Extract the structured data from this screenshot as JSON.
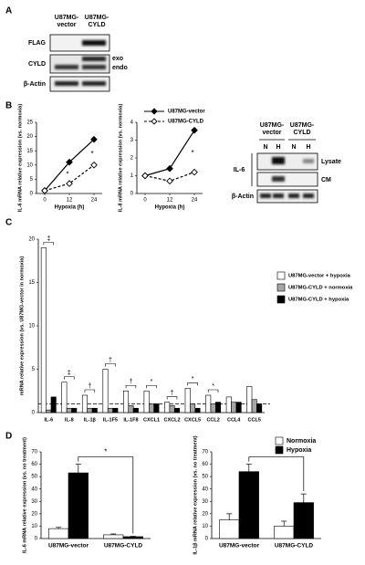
{
  "panels": {
    "a": "A",
    "b": "B",
    "c": "C",
    "d": "D"
  },
  "blot_a": {
    "columns": [
      "U87MG-vector",
      "U87MG-CYLD"
    ],
    "rows": [
      "FLAG",
      "CYLD",
      "β-Actin"
    ],
    "side_labels": [
      "exo",
      "endo"
    ]
  },
  "blot_b": {
    "groups": [
      "U87MG-vector",
      "U87MG-CYLD"
    ],
    "lanes": [
      "N",
      "H",
      "N",
      "H"
    ],
    "target": "IL-6",
    "fractions": [
      "Lysate",
      "CM"
    ],
    "loading": "β-Actin"
  },
  "chart_data": [
    {
      "type": "line",
      "ylabel": "IL-6 mRNA relative expression (vs. normoxia)",
      "xlabel": "Hypoxia (h)",
      "x": [
        0,
        12,
        24
      ],
      "xlim": [
        -4,
        28
      ],
      "xticks": [
        0,
        12,
        24
      ],
      "ylim": [
        0,
        25
      ],
      "yticks": [
        0,
        5,
        10,
        15,
        20,
        25
      ],
      "series": [
        {
          "color": "#000000",
          "marker": "filled",
          "dash": false,
          "values": [
            1,
            11,
            19
          ]
        },
        {
          "color": "#000000",
          "marker": "open",
          "dash": true,
          "values": [
            1,
            3.5,
            10
          ]
        }
      ],
      "significance": [
        null,
        "*",
        "*"
      ]
    },
    {
      "type": "line",
      "ylabel": "IL-8 mRNA relative expression (vs. normoxia)",
      "xlabel": "Hypoxia (h)",
      "x": [
        0,
        12,
        24
      ],
      "xlim": [
        -4,
        28
      ],
      "xticks": [
        0,
        12,
        24
      ],
      "ylim": [
        0,
        4
      ],
      "yticks": [
        0,
        1,
        2,
        3,
        4
      ],
      "series": [
        {
          "name": "U87MG-vector",
          "color": "#000000",
          "marker": "filled",
          "dash": false,
          "values": [
            1,
            1.4,
            3.55
          ]
        },
        {
          "name": "U87MG-CYLD",
          "color": "#000000",
          "marker": "open",
          "dash": true,
          "values": [
            1,
            0.7,
            1.2
          ]
        }
      ],
      "significance": [
        null,
        null,
        "*"
      ]
    },
    {
      "type": "bar",
      "ylabel": "mRNA relative expression (vs. U87MG-vector in normoxia)",
      "categories": [
        "IL-6",
        "IL-8",
        "IL-1β",
        "IL-1F5",
        "IL-1F8",
        "CXCL1",
        "CXCL2",
        "CXCL5",
        "CCL2",
        "CCL4",
        "CCL5"
      ],
      "ylim": [
        0,
        20
      ],
      "yticks": [
        0,
        5,
        10,
        15,
        20
      ],
      "reference_line": 1,
      "legend": "right",
      "series": [
        {
          "name": "U87MG-vector + hypoxia",
          "color": "#ffffff",
          "values": [
            19,
            3.5,
            2,
            5,
            2.5,
            2.5,
            1.2,
            2.8,
            2,
            1.8,
            3
          ]
        },
        {
          "name": "U87MG-CYLD + normoxia",
          "color": "#a6a6a6",
          "values": [
            0.3,
            0.5,
            0.5,
            0.5,
            0.8,
            1,
            0.8,
            1,
            1,
            1.2,
            1.5
          ]
        },
        {
          "name": "U87MG-CYLD + hypoxia",
          "color": "#000000",
          "values": [
            1.8,
            0.5,
            0.5,
            0.5,
            0.5,
            1,
            0.5,
            0.5,
            1.2,
            1.2,
            1
          ]
        }
      ],
      "significance": [
        "‡",
        "‡",
        "†",
        "†",
        "†",
        "*",
        "†",
        "*",
        "*",
        null,
        null
      ]
    },
    {
      "type": "bar",
      "ylabel": "IL-6 mRNA relative expression (vs. no treatment)",
      "categories": [
        "U87MG-vector",
        "U87MG-CYLD"
      ],
      "ylim": [
        0,
        70
      ],
      "yticks": [
        0,
        10,
        20,
        30,
        40,
        50,
        60,
        70
      ],
      "series": [
        {
          "color": "#ffffff",
          "values": [
            8,
            3
          ],
          "errors": [
            1,
            0.7
          ]
        },
        {
          "color": "#000000",
          "values": [
            53,
            1.5
          ],
          "errors": [
            7,
            0.3
          ]
        }
      ],
      "significance": "*"
    },
    {
      "type": "bar",
      "ylabel": "IL-1β mRNA relative expression (vs. no treatment)",
      "categories": [
        "U87MG-vector",
        "U87MG-CYLD"
      ],
      "ylim": [
        0,
        70
      ],
      "yticks": [
        0,
        10,
        20,
        30,
        40,
        50,
        60,
        70
      ],
      "legend": "upper right",
      "series": [
        {
          "name": "Normoxia",
          "color": "#ffffff",
          "values": [
            15,
            10
          ],
          "errors": [
            5,
            4
          ]
        },
        {
          "name": "Hypoxia",
          "color": "#000000",
          "values": [
            54,
            29
          ],
          "errors": [
            6,
            7
          ]
        }
      ],
      "significance": "*"
    }
  ]
}
